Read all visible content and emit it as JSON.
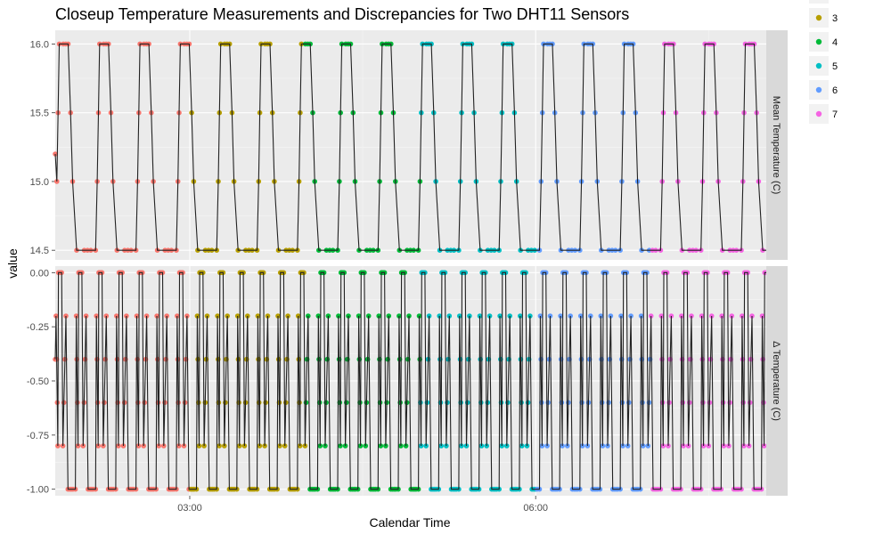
{
  "chart_data": {
    "type": "line",
    "title": "Closeup Temperature Measurements and Discrepancies for Two DHT11 Sensors",
    "xlabel": "Calendar Time",
    "ylabel": "value",
    "x_ticks": [
      "03:00",
      "06:00"
    ],
    "x_range": [
      "01:50",
      "08:00"
    ],
    "grid": true,
    "legend": {
      "placement": "right",
      "entries": [
        {
          "label": "3",
          "color": "#B79F00"
        },
        {
          "label": "4",
          "color": "#00BA38"
        },
        {
          "label": "5",
          "color": "#00BFC4"
        },
        {
          "label": "6",
          "color": "#619CFF"
        },
        {
          "label": "7",
          "color": "#F564E3"
        }
      ]
    },
    "color_segments": [
      {
        "group": "2",
        "color": "#F8766D",
        "from": "02:00",
        "to": "03:00"
      },
      {
        "group": "3",
        "color": "#B79F00",
        "from": "03:00",
        "to": "04:00"
      },
      {
        "group": "4",
        "color": "#00BA38",
        "from": "04:00",
        "to": "05:00"
      },
      {
        "group": "5",
        "color": "#00BFC4",
        "from": "05:00",
        "to": "06:00"
      },
      {
        "group": "6",
        "color": "#619CFF",
        "from": "06:00",
        "to": "07:00"
      },
      {
        "group": "7",
        "color": "#F564E3",
        "from": "07:00",
        "to": "08:00"
      }
    ],
    "panels": [
      {
        "strip": "Mean Temperature (C)",
        "ylim": [
          14.43,
          16.1
        ],
        "y_ticks": [
          {
            "label": "14.5",
            "value": 14.5
          },
          {
            "label": "15.0",
            "value": 15.0
          },
          {
            "label": "15.5",
            "value": 15.5
          },
          {
            "label": "16.0",
            "value": 16.0
          }
        ],
        "waveform": {
          "start": "01:50",
          "period_minutes": 21,
          "cycles": 18,
          "low": 14.5,
          "high": 16.0,
          "levels": [
            15.0,
            15.5
          ],
          "first_value": 15.2
        }
      },
      {
        "strip": "Δ Temperature (C)",
        "ylim": [
          -1.03,
          0.03
        ],
        "y_ticks": [
          {
            "label": "-1.00",
            "value": -1.0
          },
          {
            "label": "-0.75",
            "value": -0.75
          },
          {
            "label": "-0.50",
            "value": -0.5
          },
          {
            "label": "-0.25",
            "value": -0.25
          },
          {
            "label": "0.00",
            "value": 0.0
          }
        ],
        "waveform": {
          "start": "01:50",
          "period_minutes": 10.5,
          "cycles": 36,
          "low": -1.0,
          "high": 0.0,
          "levels": [
            -0.2,
            -0.4,
            -0.6,
            -0.8
          ],
          "first_value": -0.4
        }
      }
    ]
  }
}
